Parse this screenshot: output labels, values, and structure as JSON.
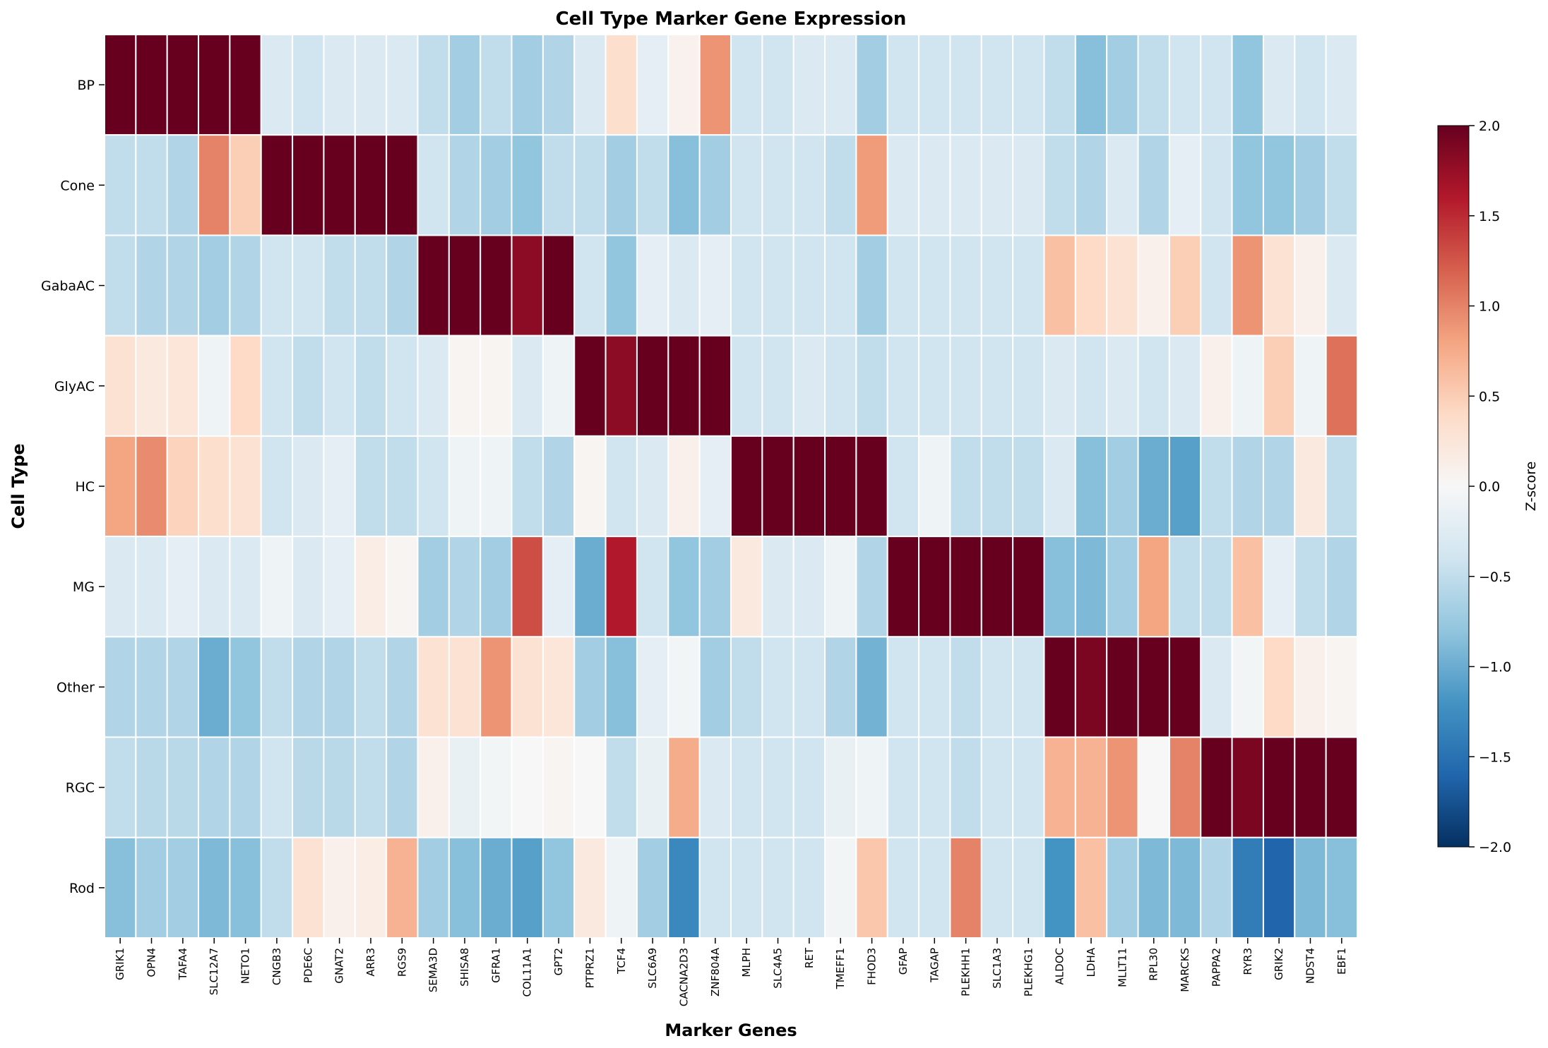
{
  "chart_data": {
    "type": "heatmap",
    "title": "Cell Type Marker Gene Expression",
    "xlabel": "Marker Genes",
    "ylabel": "Cell Type",
    "colorbar_label": "Z-score",
    "colorbar_ticks": [
      "2.0",
      "1.5",
      "1.0",
      "0.5",
      "0.0",
      "−0.5",
      "−1.0",
      "−1.5",
      "−2.0"
    ],
    "colorbar_tick_values": [
      2.0,
      1.5,
      1.0,
      0.5,
      0.0,
      -0.5,
      -1.0,
      -1.5,
      -2.0
    ],
    "zlim": [
      -2,
      2
    ],
    "colormap": "RdBu_r",
    "cell_border_color": "#ffffff",
    "rows": [
      "BP",
      "Cone",
      "GabaAC",
      "GlyAC",
      "HC",
      "MG",
      "Other",
      "RGC",
      "Rod"
    ],
    "columns": [
      "GRIK1",
      "OPN4",
      "TAFA4",
      "SLC12A7",
      "NETO1",
      "CNGB3",
      "PDE6C",
      "GNAT2",
      "ARR3",
      "RGS9",
      "SEMA3D",
      "SHISA8",
      "GFRA1",
      "COL11A1",
      "GPT2",
      "PTPRZ1",
      "TCF4",
      "SLC6A9",
      "CACNA2D3",
      "ZNF804A",
      "MLPH",
      "SLC4A5",
      "RET",
      "TMEFF1",
      "FHOD3",
      "GFAP",
      "TAGAP",
      "PLEKHH1",
      "SLC1A3",
      "PLEKHG1",
      "ALDOC",
      "LDHA",
      "MLLT11",
      "RPL30",
      "MARCKS",
      "PAPPA2",
      "RYR3",
      "GRIK2",
      "NDST4",
      "EBF1"
    ],
    "values": [
      [
        2.0,
        2.0,
        2.0,
        2.0,
        2.0,
        -0.3,
        -0.4,
        -0.3,
        -0.3,
        -0.3,
        -0.5,
        -0.7,
        -0.5,
        -0.7,
        -0.6,
        -0.3,
        0.35,
        -0.2,
        0.08,
        0.9,
        -0.4,
        -0.4,
        -0.3,
        -0.3,
        -0.7,
        -0.4,
        -0.4,
        -0.4,
        -0.4,
        -0.4,
        -0.5,
        -0.85,
        -0.7,
        -0.5,
        -0.4,
        -0.4,
        -0.8,
        -0.3,
        -0.4,
        -0.3
      ],
      [
        -0.5,
        -0.5,
        -0.6,
        1.0,
        0.5,
        2.0,
        2.0,
        2.0,
        2.0,
        2.0,
        -0.4,
        -0.6,
        -0.7,
        -0.8,
        -0.5,
        -0.5,
        -0.7,
        -0.5,
        -0.85,
        -0.7,
        -0.4,
        -0.4,
        -0.4,
        -0.5,
        0.85,
        -0.3,
        -0.3,
        -0.3,
        -0.3,
        -0.3,
        -0.5,
        -0.6,
        -0.3,
        -0.6,
        -0.2,
        -0.4,
        -0.8,
        -0.8,
        -0.7,
        -0.5
      ],
      [
        -0.5,
        -0.6,
        -0.6,
        -0.7,
        -0.6,
        -0.4,
        -0.4,
        -0.5,
        -0.5,
        -0.6,
        2.0,
        2.0,
        2.0,
        1.8,
        2.0,
        -0.4,
        -0.8,
        -0.2,
        -0.3,
        -0.2,
        -0.4,
        -0.4,
        -0.4,
        -0.4,
        -0.7,
        -0.4,
        -0.4,
        -0.4,
        -0.4,
        -0.4,
        0.6,
        0.4,
        0.3,
        0.1,
        0.5,
        -0.4,
        0.9,
        0.3,
        0.1,
        -0.3
      ],
      [
        0.3,
        0.2,
        0.25,
        -0.1,
        0.4,
        -0.4,
        -0.5,
        -0.4,
        -0.5,
        -0.4,
        -0.3,
        0.05,
        0.05,
        -0.3,
        -0.1,
        2.0,
        1.8,
        2.0,
        2.0,
        2.0,
        -0.4,
        -0.4,
        -0.3,
        -0.4,
        -0.5,
        -0.4,
        -0.4,
        -0.4,
        -0.4,
        -0.4,
        -0.3,
        -0.4,
        -0.3,
        -0.4,
        -0.3,
        0.1,
        -0.1,
        0.5,
        -0.1,
        1.1
      ],
      [
        0.8,
        0.95,
        0.45,
        0.35,
        0.3,
        -0.4,
        -0.3,
        -0.2,
        -0.5,
        -0.5,
        -0.4,
        -0.1,
        -0.1,
        -0.5,
        -0.6,
        0.05,
        -0.4,
        -0.3,
        0.1,
        -0.2,
        2.0,
        2.0,
        2.0,
        2.0,
        2.0,
        -0.4,
        -0.1,
        -0.5,
        -0.5,
        -0.5,
        -0.3,
        -0.85,
        -0.7,
        -1.0,
        -1.1,
        -0.5,
        -0.6,
        -0.6,
        0.2,
        -0.5
      ],
      [
        -0.3,
        -0.3,
        -0.2,
        -0.3,
        -0.3,
        -0.1,
        -0.3,
        -0.2,
        0.15,
        0.05,
        -0.7,
        -0.6,
        -0.7,
        1.3,
        -0.2,
        -1.0,
        1.6,
        -0.4,
        -0.8,
        -0.7,
        0.2,
        -0.3,
        -0.3,
        -0.1,
        -0.6,
        2.0,
        2.0,
        2.0,
        2.0,
        2.0,
        -0.85,
        -0.9,
        -0.7,
        0.8,
        -0.5,
        -0.5,
        0.6,
        -0.2,
        -0.5,
        -0.6
      ],
      [
        -0.6,
        -0.6,
        -0.6,
        -1.0,
        -0.8,
        -0.5,
        -0.6,
        -0.6,
        -0.5,
        -0.6,
        0.3,
        0.3,
        0.9,
        0.3,
        0.25,
        -0.7,
        -0.85,
        -0.2,
        -0.05,
        -0.7,
        -0.5,
        -0.4,
        -0.4,
        -0.6,
        -0.95,
        -0.4,
        -0.4,
        -0.5,
        -0.4,
        -0.4,
        2.0,
        1.9,
        2.0,
        2.0,
        2.0,
        -0.3,
        -0.05,
        0.4,
        0.1,
        0.05
      ],
      [
        -0.5,
        -0.55,
        -0.55,
        -0.6,
        -0.6,
        -0.4,
        -0.55,
        -0.55,
        -0.5,
        -0.6,
        0.1,
        -0.15,
        -0.05,
        0.0,
        0.05,
        0.0,
        -0.5,
        -0.15,
        0.75,
        -0.3,
        -0.4,
        -0.4,
        -0.4,
        -0.15,
        -0.1,
        -0.4,
        -0.4,
        -0.5,
        -0.4,
        -0.4,
        0.7,
        0.7,
        0.9,
        0.0,
        1.0,
        2.0,
        1.9,
        2.0,
        2.0,
        2.0
      ],
      [
        -0.85,
        -0.7,
        -0.7,
        -0.9,
        -0.85,
        -0.5,
        0.3,
        0.1,
        0.15,
        0.7,
        -0.7,
        -0.85,
        -1.0,
        -1.1,
        -0.8,
        0.2,
        -0.1,
        -0.7,
        -1.3,
        -0.4,
        -0.4,
        -0.4,
        -0.4,
        -0.05,
        0.55,
        -0.4,
        -0.4,
        1.0,
        -0.4,
        -0.4,
        -1.2,
        0.6,
        -0.7,
        -0.9,
        -0.9,
        -0.6,
        -1.4,
        -1.6,
        -0.9,
        -0.85
      ]
    ]
  }
}
